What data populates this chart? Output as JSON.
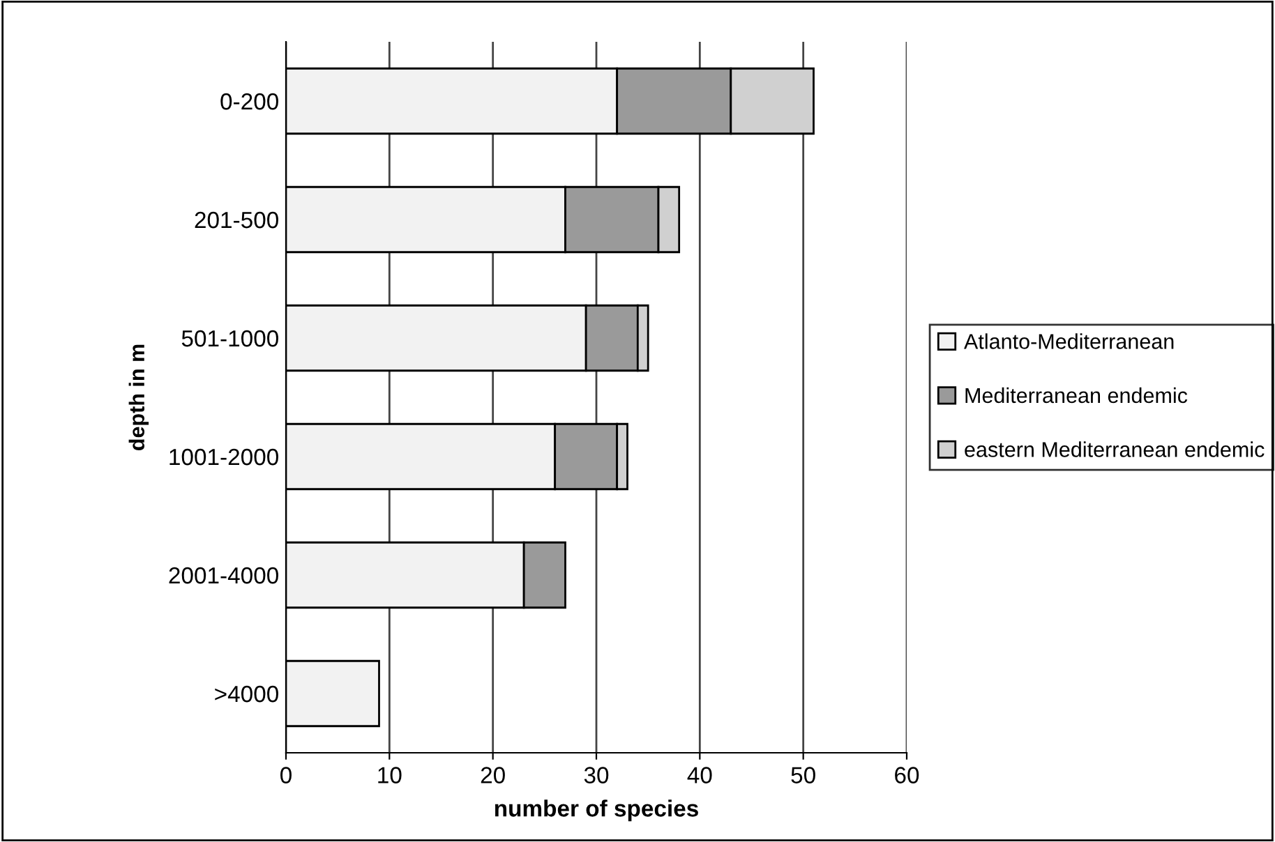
{
  "chart_data": {
    "type": "bar",
    "orientation": "horizontal",
    "stacked": true,
    "categories": [
      "0-200",
      "201-500",
      "501-1000",
      "1001-2000",
      "2001-4000",
      ">4000"
    ],
    "series": [
      {
        "name": "Atlanto-Mediterranean",
        "color": "#f2f2f2",
        "values": [
          32,
          27,
          29,
          26,
          23,
          9
        ]
      },
      {
        "name": "Mediterranean endemic",
        "color": "#9a9a9a",
        "values": [
          11,
          9,
          5,
          6,
          4,
          0
        ]
      },
      {
        "name": "eastern Mediterranean endemic",
        "color": "#d0d0d0",
        "values": [
          8,
          2,
          1,
          1,
          0,
          0
        ]
      }
    ],
    "xlabel": "number of species",
    "ylabel": "depth in m",
    "xlim": [
      0,
      60
    ],
    "xticks": [
      0,
      10,
      20,
      30,
      40,
      50,
      60
    ],
    "grid": "x",
    "legend": "right"
  }
}
